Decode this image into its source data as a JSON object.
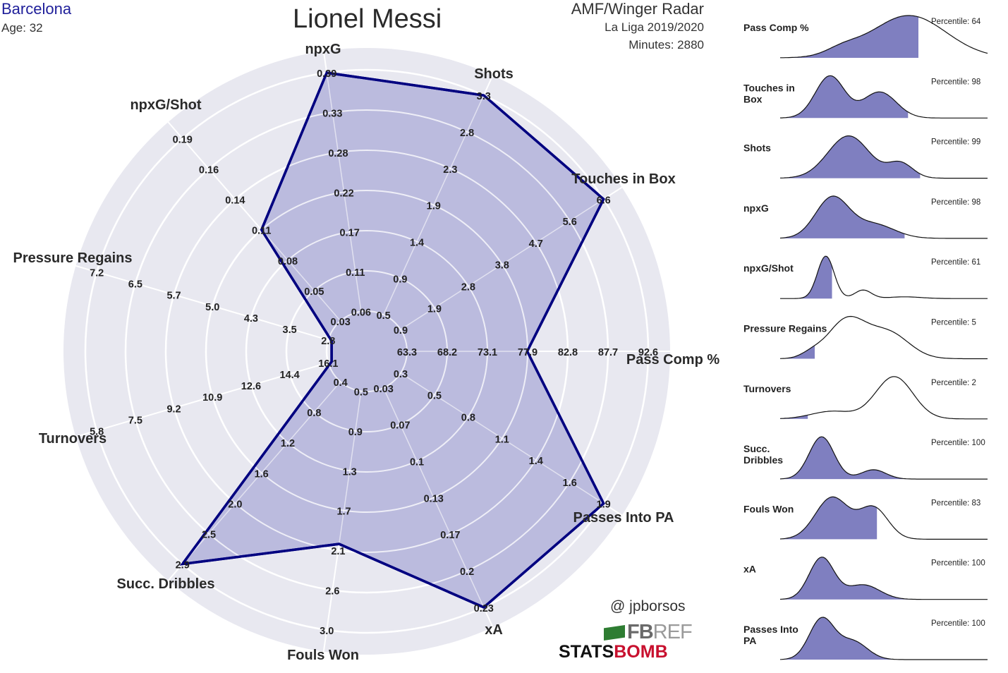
{
  "header": {
    "team": "Barcelona",
    "age": "Age: 32",
    "player": "Lionel Messi",
    "radar_title": "AMF/Winger Radar",
    "league": "La Liga 2019/2020",
    "minutes": "Minutes: 2880"
  },
  "credits": {
    "handle": "@ jpborsos",
    "fbref_fb": "FB",
    "fbref_ref": "REF",
    "statsbomb_stats": "STATS",
    "statsbomb_bomb": "BOMB"
  },
  "colors": {
    "background_disc": "#e8e8f0",
    "fill": "#b8b8dc",
    "outline": "#000080",
    "ridge_fill": "#7f7fc0"
  },
  "chart_data": [
    {
      "type": "radar",
      "scale": "each axis has its own ring labels; ring labels listed from center outwards (rings 1 to 7)",
      "axes": [
        {
          "name": "Pass Comp %",
          "ring_labels": [
            "63.3",
            "68.2",
            "73.1",
            "77.9",
            "82.8",
            "87.7",
            "92.6"
          ],
          "value": 77.9
        },
        {
          "name": "Touches in Box",
          "ring_labels": [
            "0.9",
            "1.9",
            "2.8",
            "3.8",
            "4.7",
            "5.6",
            "6.6"
          ],
          "value": 6.6
        },
        {
          "name": "Shots",
          "ring_labels": [
            "0.5",
            "0.9",
            "1.4",
            "1.9",
            "2.3",
            "2.8",
            "3.3"
          ],
          "value": 3.3
        },
        {
          "name": "npxG",
          "ring_labels": [
            "0.06",
            "0.11",
            "0.17",
            "0.22",
            "0.28",
            "0.33",
            "0.39"
          ],
          "value": 0.39
        },
        {
          "name": "npxG/Shot",
          "ring_labels": [
            "0.03",
            "0.05",
            "0.08",
            "0.11",
            "0.14",
            "0.16",
            "0.19"
          ],
          "value": 0.11
        },
        {
          "name": "Pressure Regains",
          "ring_labels": [
            "2.8",
            "3.5",
            "4.3",
            "5.0",
            "5.7",
            "6.5",
            "7.2"
          ],
          "value": 2.8
        },
        {
          "name": "Turnovers",
          "ring_labels": [
            "16.1",
            "14.4",
            "12.6",
            "10.9",
            "9.2",
            "7.5",
            "5.8"
          ],
          "value": 16.1
        },
        {
          "name": "Succ. Dribbles",
          "ring_labels": [
            "0.4",
            "0.8",
            "1.2",
            "1.6",
            "2.0",
            "2.5",
            "2.9"
          ],
          "value": 2.9
        },
        {
          "name": "Fouls Won",
          "ring_labels": [
            "0.5",
            "0.9",
            "1.3",
            "1.7",
            "2.1",
            "2.6",
            "3.0"
          ],
          "value": 2.1
        },
        {
          "name": "xA",
          "ring_labels": [
            "0.03",
            "0.07",
            "0.1",
            "0.13",
            "0.17",
            "0.2",
            "0.23"
          ],
          "value": 0.23
        },
        {
          "name": "Passes Into PA",
          "ring_labels": [
            "0.3",
            "0.5",
            "0.8",
            "1.1",
            "1.4",
            "1.6",
            "1.9"
          ],
          "value": 1.9
        }
      ]
    },
    {
      "type": "area",
      "description_of_panels": "distribution ridge plots, shaded up to the player's percentile",
      "panels": [
        {
          "label": "Pass Comp %",
          "percentile_label": "Percentile: 64",
          "percentile": 64
        },
        {
          "label": "Touches in Box",
          "percentile_label": "Percentile: 98",
          "percentile": 98
        },
        {
          "label": "Shots",
          "percentile_label": "Percentile: 99",
          "percentile": 99
        },
        {
          "label": "npxG",
          "percentile_label": "Percentile: 98",
          "percentile": 98
        },
        {
          "label": "npxG/Shot",
          "percentile_label": "Percentile: 61",
          "percentile": 61
        },
        {
          "label": "Pressure Regains",
          "percentile_label": "Percentile: 5",
          "percentile": 5
        },
        {
          "label": "Turnovers",
          "percentile_label": "Percentile: 2",
          "percentile": 2
        },
        {
          "label": "Succ. Dribbles",
          "percentile_label": "Percentile: 100",
          "percentile": 100
        },
        {
          "label": "Fouls Won",
          "percentile_label": "Percentile: 83",
          "percentile": 83
        },
        {
          "label": "xA",
          "percentile_label": "Percentile: 100",
          "percentile": 100
        },
        {
          "label": "Passes Into PA",
          "percentile_label": "Percentile: 100",
          "percentile": 100
        }
      ]
    }
  ]
}
